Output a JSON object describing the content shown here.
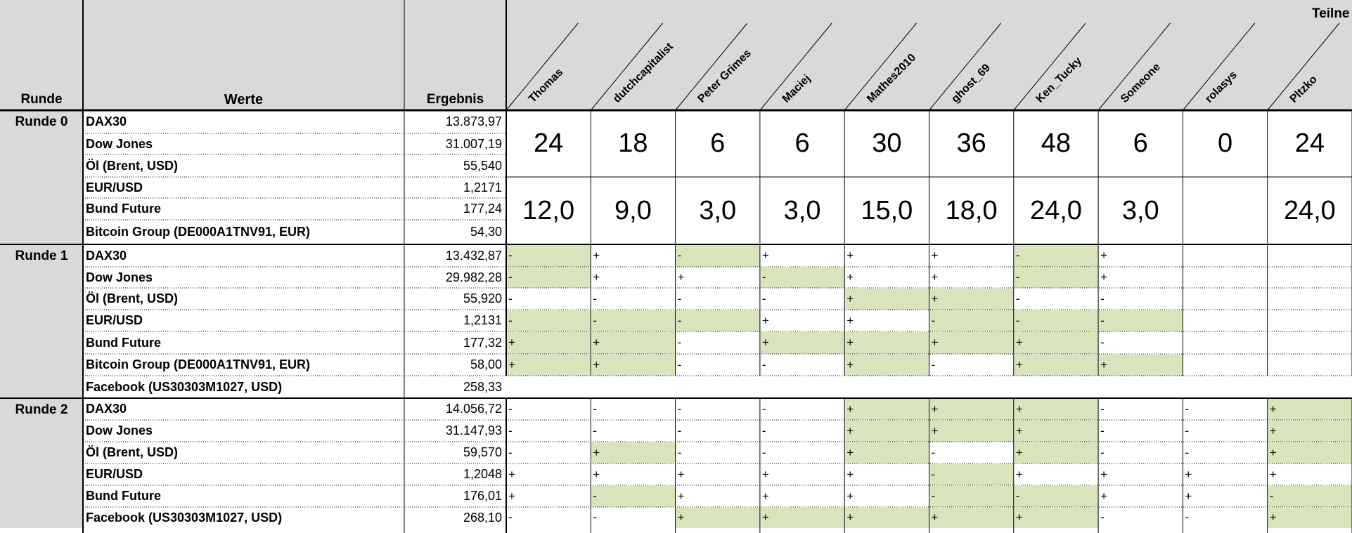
{
  "header": {
    "runde": "Runde",
    "werte": "Werte",
    "ergebnis": "Ergebnis",
    "teilnehmer": "Teilne"
  },
  "participants": [
    "Thomas",
    "dutchcapitalist",
    "Peter Grimes",
    "Maciej",
    "Mathes2010",
    "ghost_69",
    "Ken_Tucky",
    "Someone",
    "rolasys",
    "Pltzko"
  ],
  "round0": {
    "label": "Runde 0",
    "rows": [
      {
        "name": "DAX30",
        "value": "13.873,97"
      },
      {
        "name": "Dow Jones",
        "value": "31.007,19"
      },
      {
        "name": "Öl (Brent, USD)",
        "value": "55,540"
      },
      {
        "name": "EUR/USD",
        "value": "1,2171"
      },
      {
        "name": "Bund Future",
        "value": "177,24"
      },
      {
        "name": "Bitcoin Group (DE000A1TNV91, EUR)",
        "value": "54,30"
      }
    ],
    "points": [
      "24",
      "18",
      "6",
      "6",
      "30",
      "36",
      "48",
      "6",
      "0",
      "24"
    ],
    "scores": [
      "12,0",
      "9,0",
      "3,0",
      "3,0",
      "15,0",
      "18,0",
      "24,0",
      "3,0",
      "",
      "24,0"
    ]
  },
  "round1": {
    "label": "Runde 1",
    "rows": [
      {
        "name": "DAX30",
        "value": "13.432,87",
        "tips": [
          "-",
          "+",
          "-",
          "+",
          "+",
          "+",
          "-",
          "+",
          "",
          ""
        ],
        "hit": [
          1,
          0,
          1,
          0,
          0,
          0,
          1,
          0,
          0,
          0
        ]
      },
      {
        "name": "Dow Jones",
        "value": "29.982,28",
        "tips": [
          "-",
          "+",
          "+",
          "-",
          "+",
          "+",
          "-",
          "+",
          "",
          ""
        ],
        "hit": [
          1,
          0,
          0,
          1,
          0,
          0,
          1,
          0,
          0,
          0
        ]
      },
      {
        "name": "Öl (Brent, USD)",
        "value": "55,920",
        "tips": [
          "-",
          "-",
          "-",
          "-",
          "+",
          "+",
          "-",
          "-",
          "",
          ""
        ],
        "hit": [
          0,
          0,
          0,
          0,
          1,
          1,
          0,
          0,
          0,
          0
        ]
      },
      {
        "name": "EUR/USD",
        "value": "1,2131",
        "tips": [
          "-",
          "-",
          "-",
          "+",
          "+",
          "-",
          "-",
          "-",
          "",
          ""
        ],
        "hit": [
          1,
          1,
          1,
          0,
          0,
          1,
          1,
          1,
          0,
          0
        ]
      },
      {
        "name": "Bund Future",
        "value": "177,32",
        "tips": [
          "+",
          "+",
          "-",
          "+",
          "+",
          "+",
          "+",
          "-",
          "",
          ""
        ],
        "hit": [
          1,
          1,
          0,
          1,
          1,
          1,
          1,
          0,
          0,
          0
        ]
      },
      {
        "name": "Bitcoin Group (DE000A1TNV91, EUR)",
        "value": "58,00",
        "tips": [
          "+",
          "+",
          "-",
          "-",
          "+",
          "-",
          "+",
          "+",
          "",
          ""
        ],
        "hit": [
          1,
          1,
          0,
          0,
          1,
          0,
          1,
          1,
          0,
          0
        ]
      },
      {
        "name": "Facebook (US30303M1027, USD)",
        "value": "258,33"
      }
    ]
  },
  "round2": {
    "label": "Runde 2",
    "rows": [
      {
        "name": "DAX30",
        "value": "14.056,72",
        "tips": [
          "-",
          "-",
          "-",
          "-",
          "+",
          "+",
          "+",
          "-",
          "-",
          "+"
        ],
        "hit": [
          0,
          0,
          0,
          0,
          1,
          1,
          1,
          0,
          0,
          1
        ]
      },
      {
        "name": "Dow Jones",
        "value": "31.147,93",
        "tips": [
          "-",
          "-",
          "-",
          "-",
          "+",
          "+",
          "+",
          "-",
          "-",
          "+"
        ],
        "hit": [
          0,
          0,
          0,
          0,
          1,
          1,
          1,
          0,
          0,
          1
        ]
      },
      {
        "name": "Öl (Brent, USD)",
        "value": "59,570",
        "tips": [
          "-",
          "+",
          "-",
          "-",
          "+",
          "-",
          "+",
          "-",
          "-",
          "+"
        ],
        "hit": [
          0,
          1,
          0,
          0,
          1,
          0,
          1,
          0,
          0,
          1
        ]
      },
      {
        "name": "EUR/USD",
        "value": "1,2048",
        "tips": [
          "+",
          "+",
          "+",
          "+",
          "+",
          "-",
          "+",
          "+",
          "+",
          "+"
        ],
        "hit": [
          0,
          0,
          0,
          0,
          0,
          1,
          0,
          0,
          0,
          0
        ]
      },
      {
        "name": "Bund Future",
        "value": "176,01",
        "tips": [
          "+",
          "-",
          "+",
          "+",
          "+",
          "-",
          "-",
          "+",
          "+",
          "-"
        ],
        "hit": [
          0,
          1,
          0,
          0,
          0,
          1,
          1,
          0,
          0,
          1
        ]
      },
      {
        "name": "Facebook (US30303M1027, USD)",
        "value": "268,10",
        "tips": [
          "-",
          "-",
          "+",
          "+",
          "+",
          "+",
          "+",
          "-",
          "-",
          "+"
        ],
        "hit": [
          0,
          0,
          1,
          1,
          1,
          1,
          1,
          0,
          0,
          1
        ]
      }
    ]
  },
  "colors": {
    "header_bg": "#d9d9d9",
    "hit_green": "#d8e4bc",
    "grid": "#000000",
    "page_bg": "#ffffff"
  }
}
